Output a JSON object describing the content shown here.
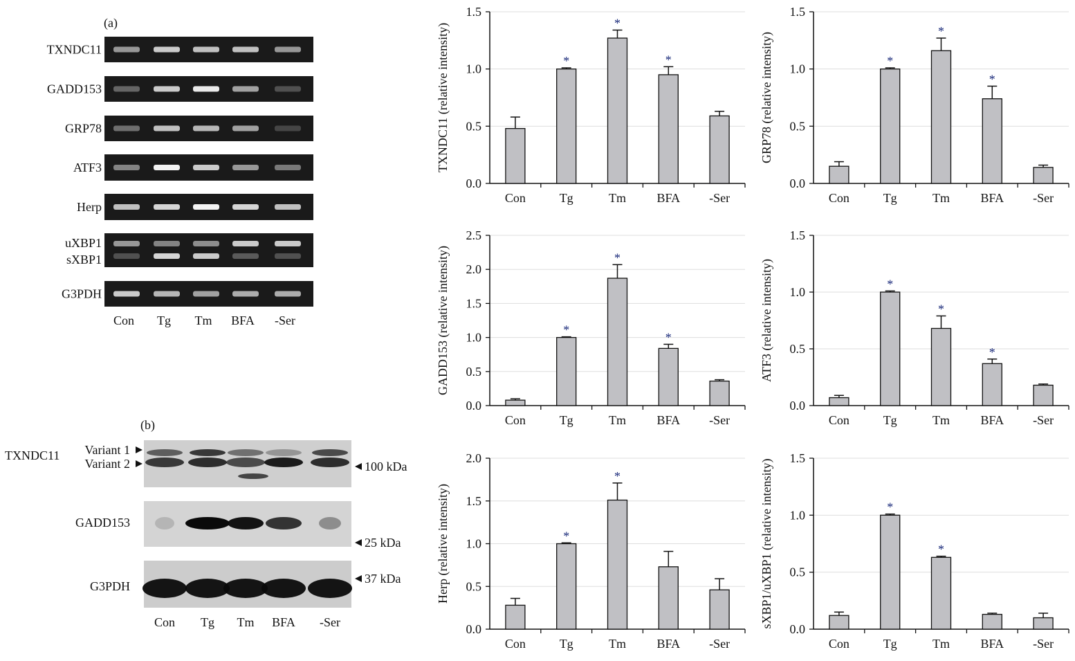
{
  "panel_a": {
    "label": "(a)",
    "lanes": [
      "Con",
      "Tg",
      "Tm",
      "BFA",
      "-Ser"
    ],
    "rows": [
      {
        "name": "TXNDC11",
        "bands": [
          [
            0.55,
            0.8,
            0.75,
            0.75,
            0.55
          ]
        ]
      },
      {
        "name": "GADD153",
        "bands": [
          [
            0.3,
            0.8,
            0.95,
            0.6,
            0.2
          ]
        ]
      },
      {
        "name": "GRP78",
        "bands": [
          [
            0.35,
            0.75,
            0.7,
            0.6,
            0.15
          ]
        ]
      },
      {
        "name": "ATF3",
        "bands": [
          [
            0.45,
            1.0,
            0.8,
            0.55,
            0.4
          ]
        ]
      },
      {
        "name": "Herp",
        "bands": [
          [
            0.75,
            0.85,
            1.0,
            0.85,
            0.75
          ]
        ]
      },
      {
        "name": "uXBP1",
        "name2": "sXBP1",
        "bands": [
          [
            0.55,
            0.45,
            0.5,
            0.8,
            0.8
          ],
          [
            0.2,
            0.85,
            0.8,
            0.25,
            0.2
          ]
        ]
      },
      {
        "name": "G3PDH",
        "bands": [
          [
            0.8,
            0.7,
            0.6,
            0.65,
            0.65
          ]
        ]
      }
    ]
  },
  "panel_b": {
    "label": "(b)",
    "lanes": [
      "Con",
      "Tg",
      "Tm",
      "BFA",
      "-Ser"
    ],
    "txndc11_label": "TXNDC11",
    "variant1": "Variant 1",
    "variant2": "Variant 2",
    "gadd153_label": "GADD153",
    "g3pdh_label": "G3PDH",
    "marker_100": "100 kDa",
    "marker_25": "25 kDa",
    "marker_37": "37 kDa"
  },
  "chart_data": [
    {
      "type": "bar",
      "ylabel": "TXNDC11 (relative intensity)",
      "categories": [
        "Con",
        "Tg",
        "Tm",
        "BFA",
        "-Ser"
      ],
      "values": [
        0.48,
        1.0,
        1.27,
        0.95,
        0.59
      ],
      "errors": [
        0.1,
        0.01,
        0.07,
        0.07,
        0.04
      ],
      "significant": [
        false,
        true,
        true,
        true,
        false
      ],
      "ylim": [
        0,
        1.5
      ],
      "yticks": [
        "0.0",
        "0.5",
        "1.0",
        "1.5"
      ],
      "grid": true
    },
    {
      "type": "bar",
      "ylabel": "GRP78 (relative intensity)",
      "categories": [
        "Con",
        "Tg",
        "Tm",
        "BFA",
        "-Ser"
      ],
      "values": [
        0.15,
        1.0,
        1.16,
        0.74,
        0.14
      ],
      "errors": [
        0.04,
        0.01,
        0.11,
        0.11,
        0.02
      ],
      "significant": [
        false,
        true,
        true,
        true,
        false
      ],
      "ylim": [
        0,
        1.5
      ],
      "yticks": [
        "0.0",
        "0.5",
        "1.0",
        "1.5"
      ],
      "grid": true
    },
    {
      "type": "bar",
      "ylabel": "GADD153 (relative intensity)",
      "categories": [
        "Con",
        "Tg",
        "Tm",
        "BFA",
        "-Ser"
      ],
      "values": [
        0.08,
        1.0,
        1.87,
        0.84,
        0.36
      ],
      "errors": [
        0.02,
        0.01,
        0.2,
        0.06,
        0.02
      ],
      "significant": [
        false,
        true,
        true,
        true,
        false
      ],
      "ylim": [
        0,
        2.5
      ],
      "yticks": [
        "0.0",
        "0.5",
        "1.0",
        "1.5",
        "2.0",
        "2.5"
      ],
      "grid": true
    },
    {
      "type": "bar",
      "ylabel": "ATF3 (relative intensity)",
      "categories": [
        "Con",
        "Tg",
        "Tm",
        "BFA",
        "-Ser"
      ],
      "values": [
        0.07,
        1.0,
        0.68,
        0.37,
        0.18
      ],
      "errors": [
        0.02,
        0.01,
        0.11,
        0.04,
        0.01
      ],
      "significant": [
        false,
        true,
        true,
        true,
        false
      ],
      "ylim": [
        0,
        1.5
      ],
      "yticks": [
        "0.0",
        "0.5",
        "1.0",
        "1.5"
      ],
      "grid": true
    },
    {
      "type": "bar",
      "ylabel": "Herp (relative intensity)",
      "categories": [
        "Con",
        "Tg",
        "Tm",
        "BFA",
        "-Ser"
      ],
      "values": [
        0.28,
        1.0,
        1.51,
        0.73,
        0.46
      ],
      "errors": [
        0.08,
        0.01,
        0.2,
        0.18,
        0.13
      ],
      "significant": [
        false,
        true,
        true,
        false,
        false
      ],
      "ylim": [
        0,
        2.0
      ],
      "yticks": [
        "0.0",
        "0.5",
        "1.0",
        "1.5",
        "2.0"
      ],
      "grid": true
    },
    {
      "type": "bar",
      "ylabel": "sXBP1/uXBP1 (relative intensity)",
      "categories": [
        "Con",
        "Tg",
        "Tm",
        "BFA",
        "-Ser"
      ],
      "values": [
        0.12,
        1.0,
        0.63,
        0.13,
        0.1
      ],
      "errors": [
        0.03,
        0.01,
        0.01,
        0.01,
        0.04
      ],
      "significant": [
        false,
        true,
        true,
        false,
        false
      ],
      "ylim": [
        0,
        1.5
      ],
      "yticks": [
        "0.0",
        "0.5",
        "1.0",
        "1.5"
      ],
      "grid": true
    }
  ],
  "colors": {
    "bar": "#c0c0c4",
    "asterisk": "#1a2a7a",
    "grid": "#dddddd",
    "gel_bg": "#1a1a1a"
  },
  "asterisk_symbol": "*"
}
